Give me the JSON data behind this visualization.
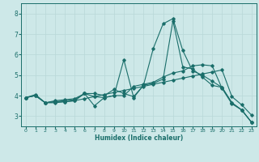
{
  "bg_color": "#cde8e8",
  "grid_color": "#b8d8d8",
  "line_color": "#1a6e6a",
  "xlabel": "Humidex (Indice chaleur)",
  "xlim": [
    -0.5,
    23.5
  ],
  "ylim": [
    2.5,
    8.5
  ],
  "yticks": [
    3,
    4,
    5,
    6,
    7,
    8
  ],
  "xticks": [
    0,
    1,
    2,
    3,
    4,
    5,
    6,
    7,
    8,
    9,
    10,
    11,
    12,
    13,
    14,
    15,
    16,
    17,
    18,
    19,
    20,
    21,
    22,
    23
  ],
  "line1_x": [
    0,
    1,
    2,
    3,
    4,
    5,
    6,
    7,
    8,
    9,
    10,
    11,
    12,
    13,
    14,
    15,
    16,
    17,
    18,
    19,
    20,
    21,
    22,
    23
  ],
  "line1_y": [
    3.9,
    4.0,
    3.65,
    3.7,
    3.7,
    3.75,
    4.1,
    3.5,
    3.9,
    4.0,
    4.0,
    4.45,
    4.55,
    4.65,
    4.9,
    5.1,
    5.2,
    5.45,
    5.5,
    5.45,
    4.35,
    3.6,
    3.3,
    2.7
  ],
  "line2_x": [
    0,
    1,
    2,
    3,
    4,
    5,
    6,
    7,
    8,
    9,
    10,
    11,
    12,
    13,
    14,
    15,
    16,
    17,
    18,
    19,
    20,
    21,
    22,
    23
  ],
  "line2_y": [
    3.9,
    4.0,
    3.65,
    3.7,
    3.75,
    3.8,
    4.1,
    4.1,
    4.0,
    4.3,
    4.1,
    3.95,
    4.5,
    6.3,
    7.5,
    7.75,
    6.2,
    5.2,
    5.0,
    4.7,
    4.4,
    3.65,
    3.3,
    2.7
  ],
  "line3_x": [
    0,
    1,
    2,
    3,
    4,
    5,
    6,
    7,
    8,
    9,
    10,
    11,
    12,
    13,
    14,
    15,
    16,
    17,
    18,
    19,
    20,
    21,
    22,
    23
  ],
  "line3_y": [
    3.9,
    4.0,
    3.65,
    3.75,
    3.8,
    3.85,
    4.1,
    3.95,
    3.9,
    4.0,
    5.75,
    3.9,
    4.5,
    4.6,
    4.8,
    7.65,
    5.4,
    5.3,
    4.9,
    4.5,
    4.4,
    3.65,
    3.3,
    2.7
  ],
  "line4_x": [
    0,
    1,
    2,
    3,
    4,
    5,
    6,
    7,
    8,
    9,
    10,
    11,
    12,
    13,
    14,
    15,
    16,
    17,
    18,
    19,
    20,
    21,
    22,
    23
  ],
  "line4_y": [
    3.9,
    4.05,
    3.65,
    3.65,
    3.7,
    3.75,
    3.85,
    3.95,
    4.05,
    4.15,
    4.25,
    4.35,
    4.45,
    4.55,
    4.65,
    4.75,
    4.85,
    4.95,
    5.05,
    5.15,
    5.25,
    3.95,
    3.55,
    3.05
  ]
}
